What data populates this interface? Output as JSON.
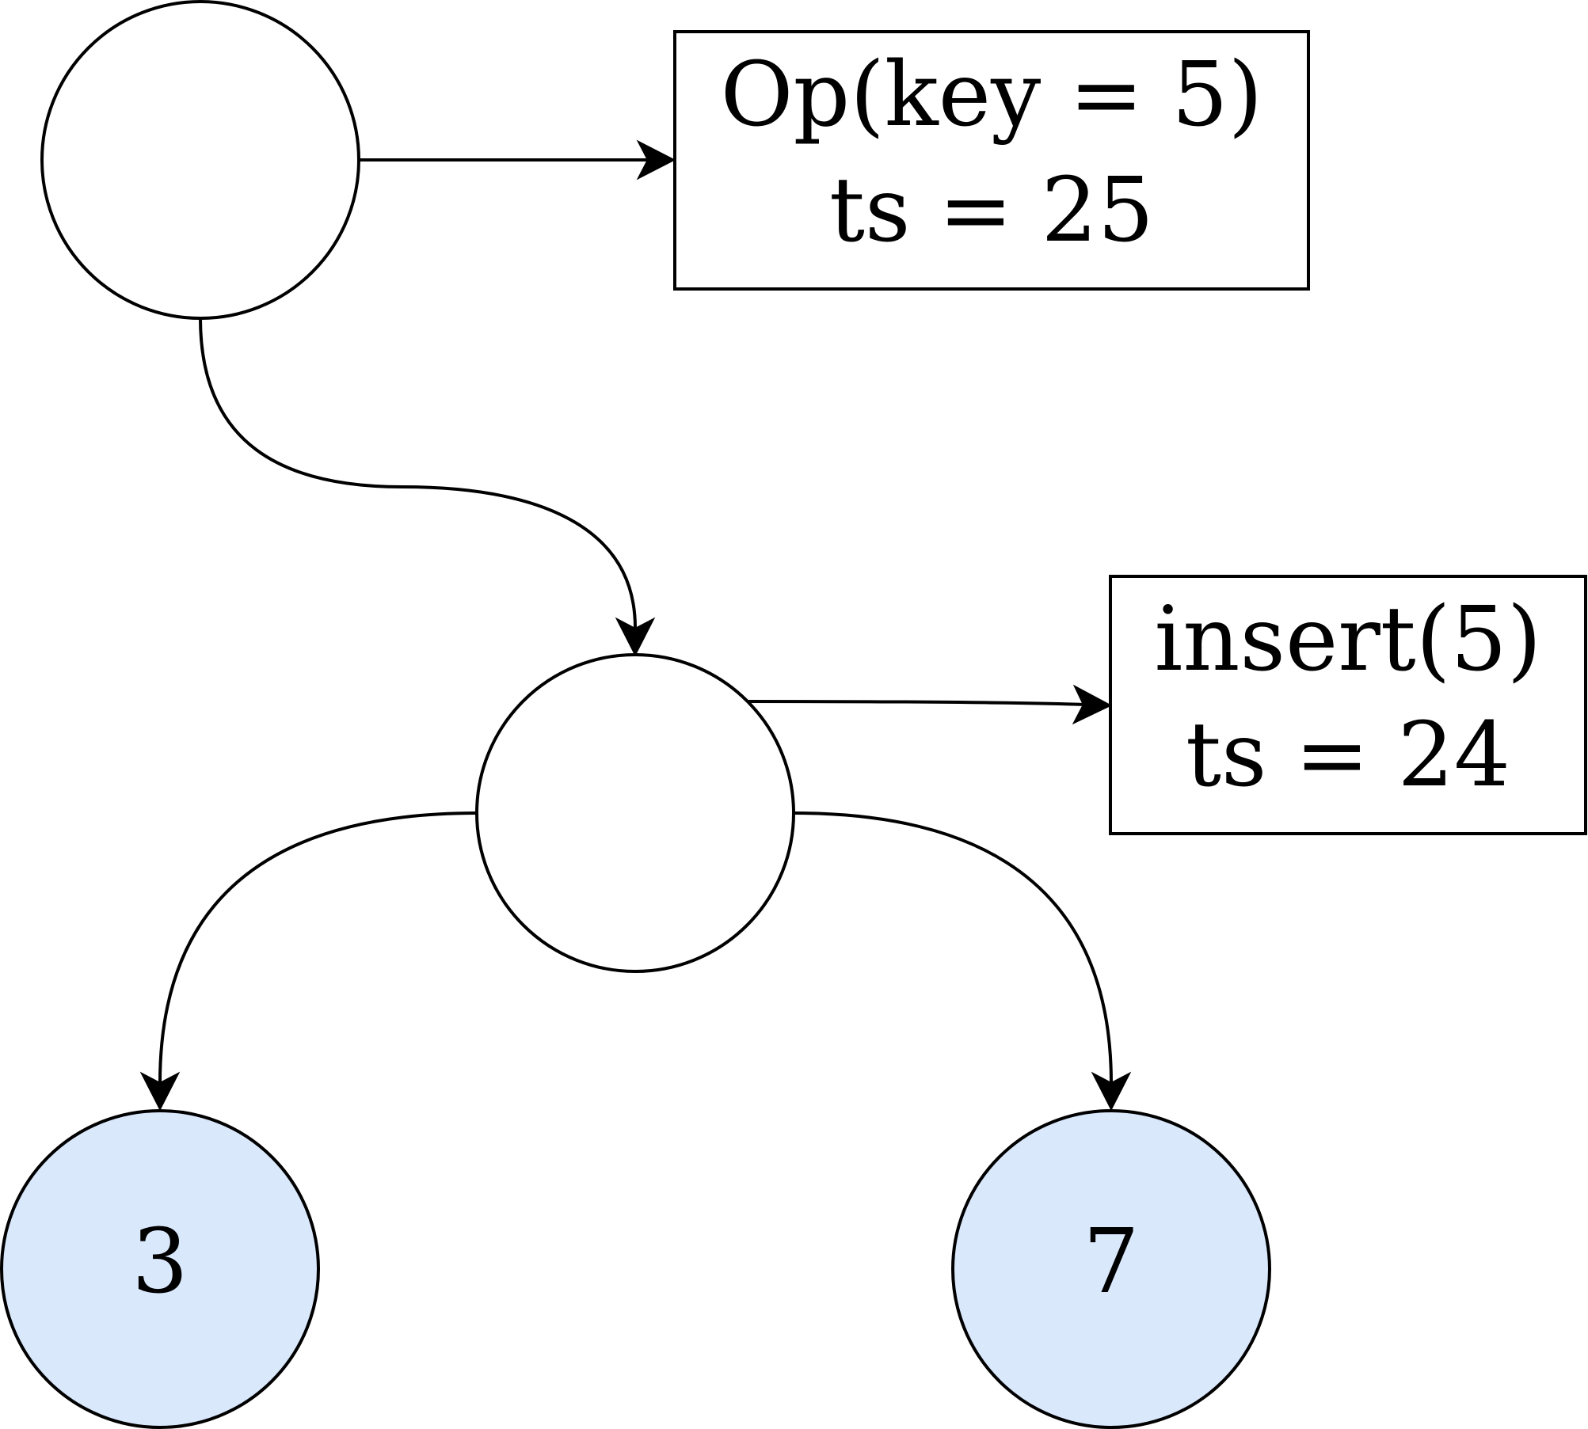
{
  "diagram": {
    "nodes": {
      "root": {
        "label": ""
      },
      "middle": {
        "label": ""
      },
      "leaf_left": {
        "label": "3",
        "fill": "#dae8fc"
      },
      "leaf_right": {
        "label": "7",
        "fill": "#dae8fc"
      }
    },
    "boxes": {
      "top": {
        "line1": "Op(key = 5)",
        "line2": "ts = 25"
      },
      "middle": {
        "line1": "insert(5)",
        "line2": "ts = 24"
      }
    },
    "edges": [
      {
        "from": "root",
        "to": "top-box"
      },
      {
        "from": "root",
        "to": "middle"
      },
      {
        "from": "middle",
        "to": "middle-box"
      },
      {
        "from": "middle",
        "to": "leaf_left"
      },
      {
        "from": "middle",
        "to": "leaf_right"
      }
    ]
  }
}
